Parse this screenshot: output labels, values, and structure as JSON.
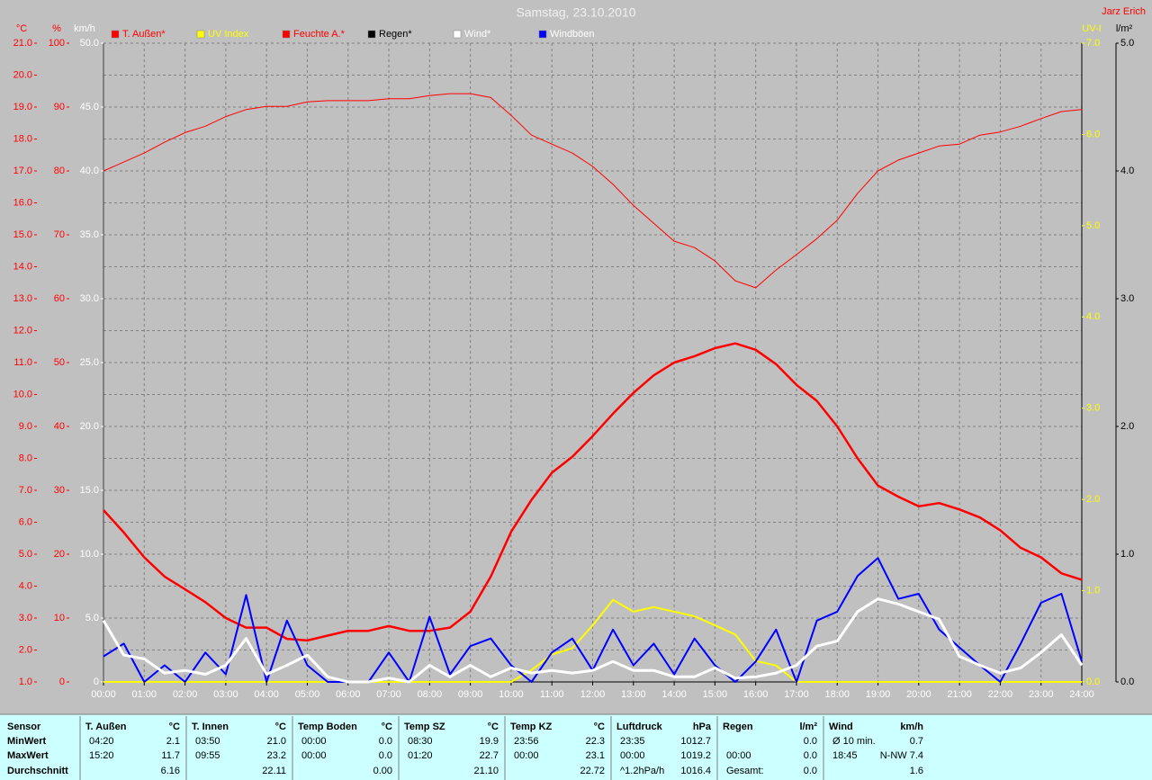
{
  "chart_data": {
    "type": "line",
    "title": "Samstag, 23.10.2010",
    "author": "Jarz Erich",
    "x": [
      0,
      0.5,
      1,
      1.5,
      2,
      2.5,
      3,
      3.5,
      4,
      4.5,
      5,
      5.5,
      6,
      6.5,
      7,
      7.5,
      8,
      8.5,
      9,
      9.5,
      10,
      10.5,
      11,
      11.5,
      12,
      12.5,
      13,
      13.5,
      14,
      14.5,
      15,
      15.5,
      16,
      16.5,
      17,
      17.5,
      18,
      18.5,
      19,
      19.5,
      20,
      20.5,
      21,
      21.5,
      22,
      22.5,
      23,
      23.5,
      24
    ],
    "xlim": [
      0,
      24
    ],
    "xticks": [
      {
        "value": 0,
        "label": "00:00"
      },
      {
        "value": 1,
        "label": "01:00"
      },
      {
        "value": 2,
        "label": "02:00"
      },
      {
        "value": 3,
        "label": "03:00"
      },
      {
        "value": 4,
        "label": "04:00"
      },
      {
        "value": 5,
        "label": "05:00"
      },
      {
        "value": 6,
        "label": "06:00"
      },
      {
        "value": 7,
        "label": "07:00"
      },
      {
        "value": 8,
        "label": "08:00"
      },
      {
        "value": 9,
        "label": "09:00"
      },
      {
        "value": 10,
        "label": "10:00"
      },
      {
        "value": 11,
        "label": "11:00"
      },
      {
        "value": 12,
        "label": "12:00"
      },
      {
        "value": 13,
        "label": "13:00"
      },
      {
        "value": 14,
        "label": "14:00"
      },
      {
        "value": 15,
        "label": "15:00"
      },
      {
        "value": 16,
        "label": "16:00"
      },
      {
        "value": 17,
        "label": "17:00"
      },
      {
        "value": 18,
        "label": "18:00"
      },
      {
        "value": 19,
        "label": "19:00"
      },
      {
        "value": 20,
        "label": "20:00"
      },
      {
        "value": 21,
        "label": "21:00"
      },
      {
        "value": 22,
        "label": "22:00"
      },
      {
        "value": 23,
        "label": "23:00"
      },
      {
        "value": 24,
        "label": "24:00"
      }
    ],
    "grid": true,
    "ylabel": "°C",
    "ycolor": "#ff0000",
    "ylim": [
      1,
      21
    ],
    "yticks": [
      {
        "value": 1,
        "label": "1.0"
      },
      {
        "value": 2,
        "label": "2.0"
      },
      {
        "value": 3,
        "label": "3.0"
      },
      {
        "value": 4,
        "label": "4.0"
      },
      {
        "value": 5,
        "label": "5.0"
      },
      {
        "value": 6,
        "label": "6.0"
      },
      {
        "value": 7,
        "label": "7.0"
      },
      {
        "value": 8,
        "label": "8.0"
      },
      {
        "value": 9,
        "label": "9.0"
      },
      {
        "value": 10,
        "label": "10.0"
      },
      {
        "value": 11,
        "label": "11.0"
      },
      {
        "value": 12,
        "label": "12.0"
      },
      {
        "value": 13,
        "label": "13.0"
      },
      {
        "value": 14,
        "label": "14.0"
      },
      {
        "value": 15,
        "label": "15.0"
      },
      {
        "value": 16,
        "label": "16.0"
      },
      {
        "value": 17,
        "label": "17.0"
      },
      {
        "value": 18,
        "label": "18.0"
      },
      {
        "value": 19,
        "label": "19.0"
      },
      {
        "value": 20,
        "label": "20.0"
      },
      {
        "value": 21,
        "label": "21.0"
      }
    ],
    "y2label": "%",
    "y2color": "#ff0000",
    "y2lim": [
      0,
      100
    ],
    "y2ticks": [
      0,
      10,
      20,
      30,
      40,
      50,
      60,
      70,
      80,
      90,
      100
    ],
    "y3label": "km/h",
    "y3color": "#ffffff",
    "y3lim": [
      0,
      50
    ],
    "y3ticks": [
      0,
      {
        "value": 5,
        "label": "5.0"
      },
      {
        "value": 10,
        "label": "10.0"
      },
      {
        "value": 15,
        "label": "15.0"
      },
      {
        "value": 20,
        "label": "20.0"
      },
      {
        "value": 25,
        "label": "25.0"
      },
      {
        "value": 30,
        "label": "30.0"
      },
      {
        "value": 35,
        "label": "35.0"
      },
      {
        "value": 40,
        "label": "40.0"
      },
      {
        "value": 45,
        "label": "45.0"
      },
      {
        "value": 50,
        "label": "50.0"
      }
    ],
    "y4label": "UV-I",
    "y4color": "#ffff00",
    "y4lim": [
      0,
      7
    ],
    "y4ticks": [
      {
        "value": 0,
        "label": "0.0"
      },
      {
        "value": 1,
        "label": "1.0"
      },
      {
        "value": 2,
        "label": "2.0"
      },
      {
        "value": 3,
        "label": "3.0"
      },
      {
        "value": 4,
        "label": "4.0"
      },
      {
        "value": 5,
        "label": "5.0"
      },
      {
        "value": 6,
        "label": "6.0"
      },
      {
        "value": 7,
        "label": "7.0"
      }
    ],
    "y5label": "l/m²",
    "y5color": "#000000",
    "y5lim": [
      0,
      5
    ],
    "y5ticks": [
      {
        "value": 0,
        "label": "0.0"
      },
      {
        "value": 1,
        "label": "1.0"
      },
      {
        "value": 2,
        "label": "2.0"
      },
      {
        "value": 3,
        "label": "3.0"
      },
      {
        "value": 4,
        "label": "4.0"
      },
      {
        "value": 5,
        "label": "5.0"
      }
    ],
    "series": [
      {
        "name": "Regen*",
        "color": "#000000",
        "axis": "y5",
        "line_width": 1,
        "values": [
          0,
          0,
          0,
          0,
          0,
          0,
          0,
          0,
          0,
          0,
          0,
          0,
          0,
          0,
          0,
          0,
          0,
          0,
          0,
          0,
          0,
          0,
          0,
          0,
          0,
          0,
          0,
          0,
          0,
          0,
          0,
          0,
          0,
          0,
          0,
          0,
          0,
          0,
          0,
          0,
          0,
          0,
          0,
          0,
          0,
          0,
          0,
          0,
          0
        ]
      },
      {
        "name": "T. Außen*",
        "color": "#ff0000",
        "axis": "y",
        "line_width": 2.5,
        "values": [
          6.38,
          5.68,
          4.9,
          4.3,
          3.9,
          3.5,
          3.0,
          2.7,
          2.7,
          2.35,
          2.3,
          2.45,
          2.6,
          2.6,
          2.75,
          2.6,
          2.6,
          2.7,
          3.2,
          4.3,
          5.7,
          6.7,
          7.55,
          8.05,
          8.7,
          9.4,
          10.05,
          10.6,
          11.0,
          11.2,
          11.45,
          11.6,
          11.4,
          10.95,
          10.3,
          9.8,
          9.0,
          8.0,
          7.15,
          6.8,
          6.5,
          6.6,
          6.4,
          6.15,
          5.75,
          5.2,
          4.9,
          4.4,
          4.2
        ]
      },
      {
        "name": "UV Index",
        "color": "#ffff00",
        "axis": "y4",
        "line_width": 2,
        "values": [
          0,
          0,
          0,
          0,
          0,
          0,
          0,
          0,
          0,
          0,
          0,
          0,
          0,
          0,
          0,
          0,
          0,
          0,
          0,
          0,
          0,
          0.13,
          0.3,
          0.37,
          0.62,
          0.9,
          0.77,
          0.82,
          0.77,
          0.72,
          0.62,
          0.52,
          0.23,
          0.18,
          0,
          0,
          0,
          0,
          0,
          0,
          0,
          0,
          0,
          0,
          0,
          0,
          0,
          0,
          0
        ]
      },
      {
        "name": "Feuchte A.*",
        "color": "#ff0000",
        "axis": "y2",
        "line_width": 1,
        "values": [
          80,
          81.4,
          82.8,
          84.5,
          86,
          87,
          88.5,
          89.6,
          90.1,
          90.1,
          90.8,
          91,
          91,
          91,
          91.3,
          91.3,
          91.8,
          92.1,
          92.1,
          91.5,
          88.7,
          85.6,
          84.2,
          82.8,
          80.7,
          77.9,
          74.6,
          71.8,
          69,
          68,
          65.9,
          62.8,
          61.7,
          64.5,
          66.9,
          69.4,
          72.3,
          76.5,
          80,
          81.7,
          82.8,
          83.9,
          84.2,
          85.6,
          86.1,
          87,
          88.2,
          89.3,
          89.6
        ]
      },
      {
        "name": "Windböen",
        "color": "#0000ff",
        "axis": "y3",
        "line_width": 2,
        "values": [
          2.0,
          3.0,
          0,
          1.3,
          0,
          2.3,
          0.6,
          6.8,
          0,
          4.8,
          1.3,
          0,
          0,
          0,
          2.3,
          0,
          5.1,
          0.6,
          2.8,
          3.4,
          1.3,
          0,
          2.3,
          3.4,
          0.9,
          4.1,
          1.3,
          3.0,
          0.6,
          3.4,
          1.3,
          0,
          1.6,
          4.1,
          0,
          4.8,
          5.5,
          8.3,
          9.7,
          6.5,
          6.9,
          4.1,
          2.7,
          1.3,
          0,
          3.0,
          6.2,
          6.9,
          1.6
        ]
      },
      {
        "name": "Wind*",
        "color": "#ffffff",
        "axis": "y3",
        "line_width": 3,
        "values": [
          4.8,
          2.1,
          1.8,
          0.7,
          0.9,
          0.6,
          1.3,
          3.4,
          0.6,
          1.3,
          2.1,
          0.4,
          0,
          0,
          0.3,
          0,
          1.3,
          0.4,
          1.3,
          0.4,
          1.1,
          0.7,
          0.9,
          0.7,
          0.9,
          1.6,
          0.9,
          0.9,
          0.4,
          0.4,
          1.1,
          0.3,
          0.4,
          0.7,
          1.3,
          2.8,
          3.2,
          5.5,
          6.5,
          6.1,
          5.5,
          4.9,
          2.0,
          1.3,
          0.7,
          1.1,
          2.3,
          3.7,
          1.3
        ]
      }
    ],
    "legend_order": [
      1,
      2,
      3,
      0,
      5,
      4
    ]
  },
  "table": {
    "header": "Sensor",
    "row_labels": [
      "MinWert",
      "MaxWert",
      "Durchschnitt"
    ],
    "groups": [
      {
        "name": "T. Außen",
        "unit": "°C",
        "rows": [
          [
            "04:20",
            "2.1"
          ],
          [
            "15:20",
            "11.7"
          ],
          [
            null,
            "6.16"
          ]
        ]
      },
      {
        "name": "T. Innen",
        "unit": "°C",
        "rows": [
          [
            "03:50",
            "21.0"
          ],
          [
            "09:55",
            "23.2"
          ],
          [
            null,
            "22.11"
          ]
        ]
      },
      {
        "name": "Temp Boden",
        "unit": "°C",
        "rows": [
          [
            "00:00",
            "0.0"
          ],
          [
            "00:00",
            "0.0"
          ],
          [
            null,
            "0.00"
          ]
        ]
      },
      {
        "name": "Temp SZ",
        "unit": "°C",
        "rows": [
          [
            "08:30",
            "19.9"
          ],
          [
            "01:20",
            "22.7"
          ],
          [
            null,
            "21.10"
          ]
        ]
      },
      {
        "name": "Temp KZ",
        "unit": "°C",
        "rows": [
          [
            "23:56",
            "22.3"
          ],
          [
            "00:00",
            "23.1"
          ],
          [
            null,
            "22.72"
          ]
        ]
      },
      {
        "name": "Luftdruck",
        "unit": "hPa",
        "rows": [
          [
            "23:35",
            "1012.7"
          ],
          [
            "00:00",
            "1019.2"
          ],
          [
            "^1.2hPa/h",
            "1016.4"
          ]
        ]
      },
      {
        "name": "Regen",
        "unit": "l/m²",
        "rows": [
          [
            null,
            "0.0"
          ],
          [
            "00:00",
            "0.0"
          ],
          [
            "Gesamt:",
            "0.0"
          ]
        ]
      },
      {
        "name": "Wind",
        "unit": "km/h",
        "rows": [
          [
            "Ø 10 min.",
            "0.7"
          ],
          [
            "18:45",
            "N-NW 7.4"
          ],
          [
            null,
            "1.6"
          ]
        ]
      }
    ]
  }
}
